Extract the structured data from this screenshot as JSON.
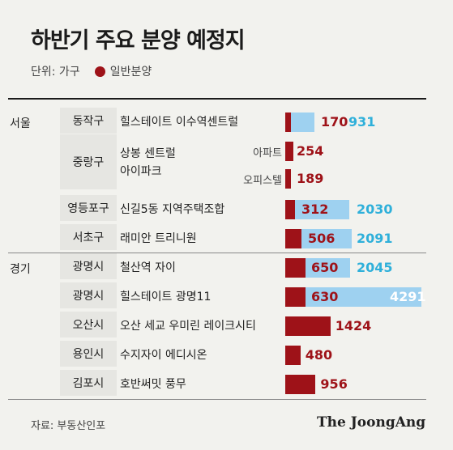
{
  "title": "하반기 주요 분양 예정지",
  "legend": {
    "unit": "단위: 가구",
    "series_label": "일반분양"
  },
  "source": "자료: 부동산인포",
  "brand": "The JoongAng",
  "colors": {
    "general": "#9e1218",
    "total": "#9ed1f0",
    "total_text": "#2fb0da"
  },
  "chart_data": {
    "type": "bar",
    "orientation": "horizontal",
    "stacked_overlay": true,
    "series": [
      {
        "name": "일반분양",
        "values": [
          170,
          254,
          189,
          312,
          506,
          650,
          630,
          1424,
          480,
          956
        ]
      },
      {
        "values": [
          931,
          null,
          null,
          2030,
          2091,
          2045,
          4291,
          null,
          null,
          null
        ]
      }
    ],
    "rows": [
      {
        "region": "서울",
        "district": "동작구",
        "project": "힐스테이트 이수역센트럴",
        "type": "",
        "general": 170,
        "total": 931
      },
      {
        "region": "",
        "district": "중랑구",
        "project": "상봉 센트럴\n아이파크",
        "type": "아파트",
        "general": 254,
        "total": null
      },
      {
        "region": "",
        "district": "",
        "project": "",
        "type": "오피스텔",
        "general": 189,
        "total": null
      },
      {
        "region": "",
        "district": "영등포구",
        "project": "신길5동 지역주택조합",
        "type": "",
        "general": 312,
        "total": 2030
      },
      {
        "region": "",
        "district": "서초구",
        "project": "래미안 트리니원",
        "type": "",
        "general": 506,
        "total": 2091
      },
      {
        "region": "경기",
        "district": "광명시",
        "project": "철산역 자이",
        "type": "",
        "general": 650,
        "total": 2045
      },
      {
        "region": "",
        "district": "광명시",
        "project": "힐스테이트 광명11",
        "type": "",
        "general": 630,
        "total": 4291
      },
      {
        "region": "",
        "district": "오산시",
        "project": "오산 세교 우미린 레이크시티",
        "type": "",
        "general": 1424,
        "total": null
      },
      {
        "region": "",
        "district": "용인시",
        "project": "수지자이 에디시온",
        "type": "",
        "general": 480,
        "total": null
      },
      {
        "region": "",
        "district": "김포시",
        "project": "호반써밋 풍무",
        "type": "",
        "general": 956,
        "total": null
      }
    ],
    "labels": {
      "general": [
        "170",
        "254",
        "189",
        "312",
        "506",
        "650",
        "630",
        "1424",
        "480",
        "956"
      ],
      "total": [
        "931",
        "",
        "",
        "2030",
        "2091",
        "2045",
        "4291",
        "",
        "",
        ""
      ]
    }
  }
}
